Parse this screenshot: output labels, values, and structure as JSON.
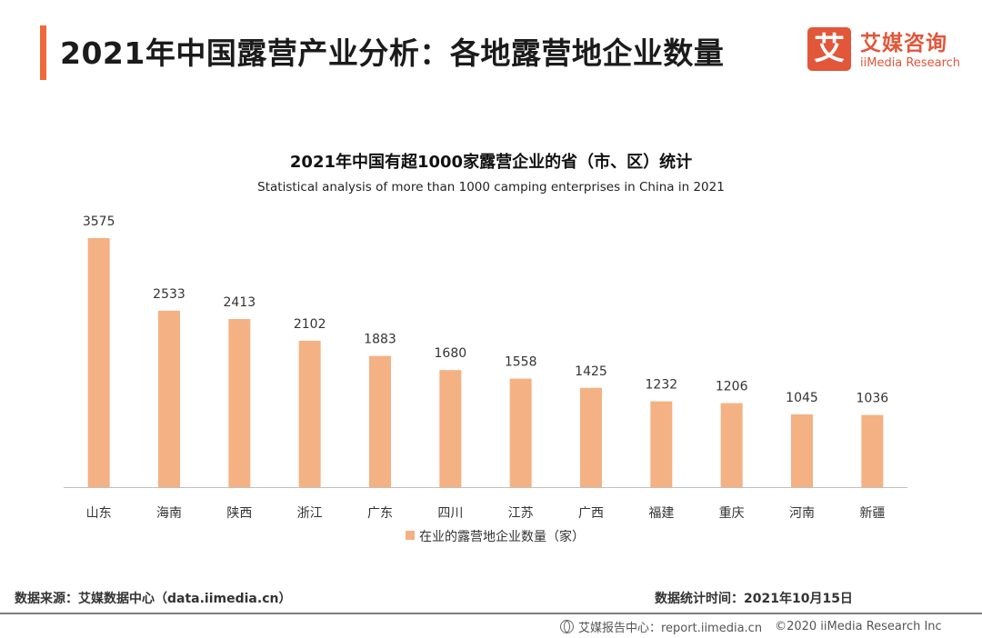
{
  "header": {
    "title": "2021年中国露营产业分析：各地露营地企业数量",
    "accent_color": "#ef6a3a"
  },
  "logo": {
    "box_char": "艾",
    "name_cn": "艾媒咨询",
    "name_en": "iiMedia Research",
    "color": "#e2563a"
  },
  "chart_data": {
    "type": "bar",
    "title": "2021年中国有超1000家露营企业的省（市、区）统计",
    "subtitle": "Statistical analysis of more than 1000 camping enterprises in China in 2021",
    "categories": [
      "山东",
      "海南",
      "陕西",
      "浙江",
      "广东",
      "四川",
      "江苏",
      "广西",
      "福建",
      "重庆",
      "河南",
      "新疆"
    ],
    "series": [
      {
        "name": "在业的露营地企业数量（家）",
        "values": [
          3575,
          2533,
          2413,
          2102,
          1883,
          1680,
          1558,
          1425,
          1232,
          1206,
          1045,
          1036
        ],
        "color": "#f4b183"
      }
    ],
    "ylim": [
      0,
      3575
    ],
    "xlabel": "",
    "ylabel": "",
    "grid": false,
    "legend_position": "bottom-center"
  },
  "footer": {
    "source": "数据来源：艾媒数据中心（data.iimedia.cn）",
    "date": "数据统计时间：2021年10月15日",
    "brand": "艾媒报告中心：report.iimedia.cn",
    "copyright": "©2020  iiMedia Research  Inc"
  }
}
